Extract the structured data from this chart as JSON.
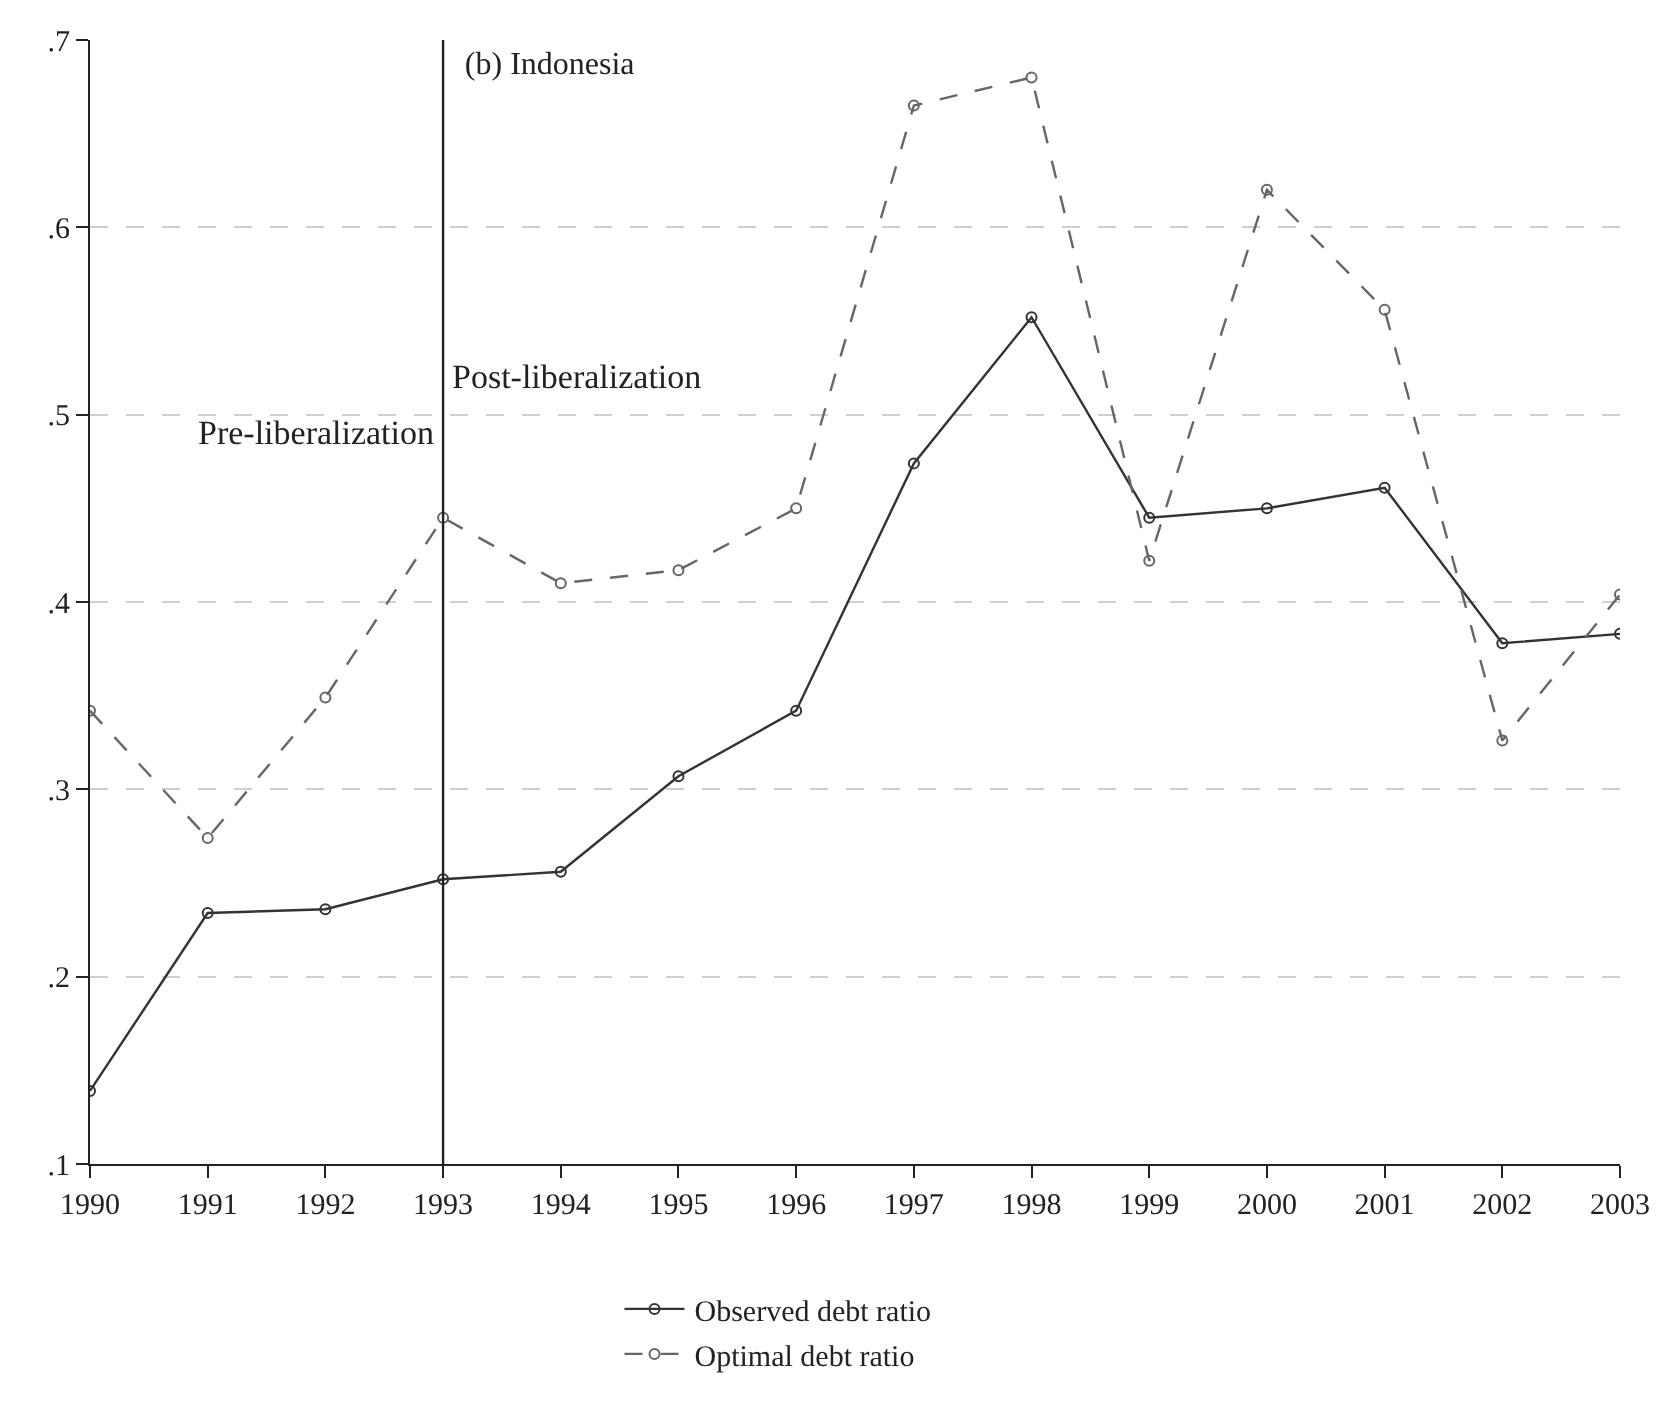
{
  "chart_data": {
    "type": "line",
    "title": "(b) Indonesia",
    "x": [
      1990,
      1991,
      1992,
      1993,
      1994,
      1995,
      1996,
      1997,
      1998,
      1999,
      2000,
      2001,
      2002,
      2003
    ],
    "series": [
      {
        "name": "Observed debt ratio",
        "color": "#333333",
        "line_style": "solid",
        "values": [
          0.139,
          0.234,
          0.236,
          0.252,
          0.256,
          0.307,
          0.342,
          0.474,
          0.552,
          0.445,
          0.45,
          0.461,
          0.378,
          0.383
        ]
      },
      {
        "name": "Optimal debt ratio",
        "color": "#666666",
        "line_style": "dashed",
        "values": [
          0.342,
          0.274,
          0.349,
          0.445,
          0.41,
          0.417,
          0.45,
          0.665,
          0.68,
          0.422,
          0.62,
          0.556,
          0.326,
          0.404
        ]
      }
    ],
    "xlim": [
      1990,
      2003
    ],
    "xticks": [
      1990,
      1991,
      1992,
      1993,
      1994,
      1995,
      1996,
      1997,
      1998,
      1999,
      2000,
      2001,
      2002,
      2003
    ],
    "ylim": [
      0.1,
      0.7
    ],
    "yticks": [
      {
        "value": 0.1,
        "label": ".1"
      },
      {
        "value": 0.2,
        "label": ".2"
      },
      {
        "value": 0.3,
        "label": ".3"
      },
      {
        "value": 0.4,
        "label": ".4"
      },
      {
        "value": 0.5,
        "label": ".5"
      },
      {
        "value": 0.6,
        "label": ".6"
      },
      {
        "value": 0.7,
        "label": ".7"
      }
    ],
    "ref_lines": [
      {
        "axis": "x",
        "value": 1993,
        "color": "#222222"
      }
    ],
    "annotations": [
      "Pre-liberalization",
      "Post-liberalization"
    ],
    "grid": "y",
    "legend": "bottom",
    "marker": "circle"
  }
}
